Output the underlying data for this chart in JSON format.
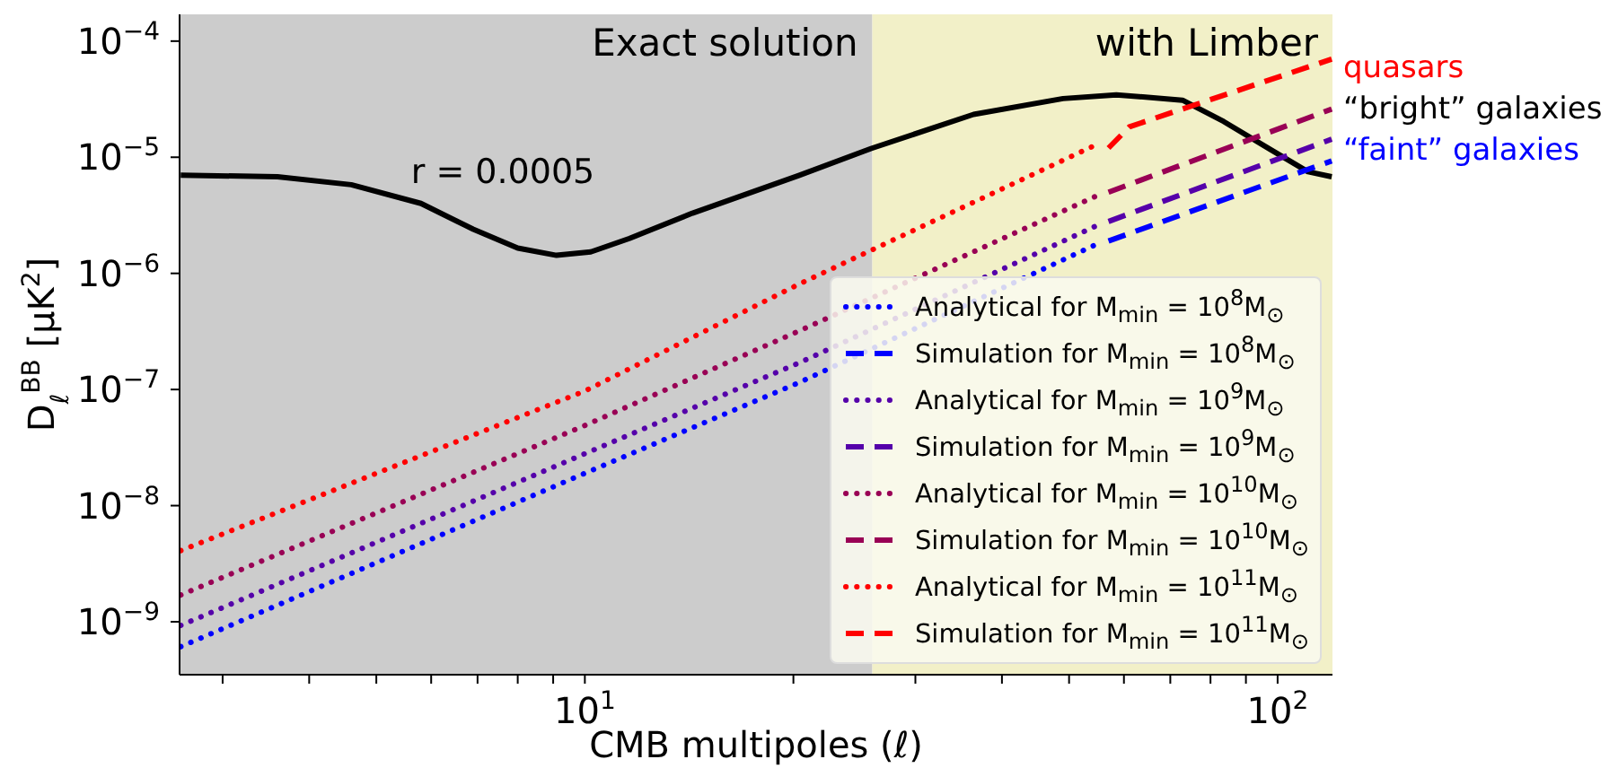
{
  "chart_data": {
    "type": "line",
    "xlabel": "CMB multipoles (ℓ)",
    "ylabel": "D$_{ℓ}$$^{BB}$ [μK$^{2}$]",
    "log": "xy",
    "grid": false,
    "legend": "bottom right",
    "xlim": [
      2.6,
      120
    ],
    "ylim": [
      3.5e-10,
      0.00017
    ],
    "xticks": [
      {
        "value": 3,
        "label": null
      },
      {
        "value": 4,
        "label": null
      },
      {
        "value": 5,
        "label": null
      },
      {
        "value": 6,
        "label": null
      },
      {
        "value": 7,
        "label": null
      },
      {
        "value": 8,
        "label": null
      },
      {
        "value": 9,
        "label": null
      },
      {
        "value": 10,
        "label": "10$^{1}$"
      },
      {
        "value": 20,
        "label": null
      },
      {
        "value": 30,
        "label": null
      },
      {
        "value": 40,
        "label": null
      },
      {
        "value": 50,
        "label": null
      },
      {
        "value": 60,
        "label": null
      },
      {
        "value": 70,
        "label": null
      },
      {
        "value": 80,
        "label": null
      },
      {
        "value": 90,
        "label": null
      },
      {
        "value": 100,
        "label": "10$^{2}$"
      }
    ],
    "yticks": [
      {
        "value": 1e-09,
        "label": "10$^{−9}$"
      },
      {
        "value": 1e-08,
        "label": "10$^{−8}$"
      },
      {
        "value": 1e-07,
        "label": "10$^{−7}$"
      },
      {
        "value": 1e-06,
        "label": "10$^{−6}$"
      },
      {
        "value": 1e-05,
        "label": "10$^{−5}$"
      },
      {
        "value": 0.0001,
        "label": "10$^{−4}$"
      }
    ],
    "bands": [
      {
        "axis": "x",
        "from": 2.6,
        "to": 26,
        "label": "Exact solution",
        "color": "#cccccc"
      },
      {
        "axis": "x",
        "from": 26,
        "to": 120,
        "label": "with Limber",
        "color": "#f2f0c8"
      }
    ],
    "annotations": [
      "r = 0.0005",
      "quasars",
      "“bright” galaxies",
      "“faint” galaxies"
    ],
    "series": [
      {
        "color": "#000000",
        "line_style": "solid",
        "x": [
          2.61,
          3.6,
          4.6,
          5.8,
          6.9,
          8.0,
          9.1,
          10.2,
          11.6,
          14.3,
          20.4,
          25.9,
          36.4,
          49,
          58.5,
          72.9,
          83.6,
          98,
          110.6,
          119.7
        ],
        "values": [
          7e-06,
          6.8e-06,
          5.8e-06,
          4e-06,
          2.4e-06,
          1.65e-06,
          1.43e-06,
          1.53e-06,
          2e-06,
          3.3e-06,
          7e-06,
          1.19e-05,
          2.34e-05,
          3.2e-05,
          3.45e-05,
          3.1e-05,
          2.03e-05,
          1.15e-05,
          7.5e-06,
          6.8e-06
        ]
      },
      {
        "name": "Analytical for M$_{min}$ = 10$^{8}$M$_{⊙}$",
        "color": "#0000ff",
        "line_style": "dotted",
        "x": [
          2.61,
          10,
          20.4,
          55
        ],
        "values": [
          6.1e-10,
          1.9e-08,
          1.15e-07,
          1.8e-06
        ]
      },
      {
        "name": "Simulation for M$_{min}$ = 10$^{8}$M$_{⊙}$",
        "color": "#0000ff",
        "line_style": "dashed",
        "x": [
          57,
          119.7
        ],
        "values": [
          1.9e-06,
          9.3e-06
        ]
      },
      {
        "name": "Analytical for M$_{min}$ = 10$^{9}$M$_{⊙}$",
        "color": "#5500aa",
        "line_style": "dotted",
        "x": [
          2.61,
          10,
          20.4,
          55
        ],
        "values": [
          9.3e-10,
          2.8e-08,
          1.7e-07,
          2.6e-06
        ]
      },
      {
        "name": "Simulation for M$_{min}$ = 10$^{9}$M$_{⊙}$",
        "color": "#5500aa",
        "line_style": "dashed",
        "x": [
          57,
          119.7
        ],
        "values": [
          2.8e-06,
          1.43e-05
        ]
      },
      {
        "name": "Analytical for M$_{min}$ = 10$^{10}$M$_{⊙}$",
        "color": "#990055",
        "line_style": "dotted",
        "x": [
          2.61,
          10,
          20.4,
          55
        ],
        "values": [
          1.7e-09,
          4.9e-08,
          3.2e-07,
          4.7e-06
        ]
      },
      {
        "name": "Simulation for M$_{min}$ = 10$^{10}$M$_{⊙}$",
        "color": "#990055",
        "line_style": "dashed",
        "x": [
          57,
          119.7
        ],
        "values": [
          5e-06,
          2.6e-05
        ]
      },
      {
        "name": "Analytical for M$_{min}$ = 10$^{11}$M$_{⊙}$",
        "color": "#ff0000",
        "line_style": "dotted",
        "x": [
          2.61,
          10,
          20.4,
          55
        ],
        "values": [
          4.1e-09,
          9.7e-08,
          8.1e-07,
          1.3e-05
        ]
      },
      {
        "name": "Simulation for M$_{min}$ = 10$^{11}$M$_{⊙}$",
        "color": "#ff0000",
        "line_style": "dashed",
        "x": [
          57,
          61.1,
          119.7
        ],
        "values": [
          1.2e-05,
          1.83e-05,
          7e-05
        ]
      }
    ]
  }
}
